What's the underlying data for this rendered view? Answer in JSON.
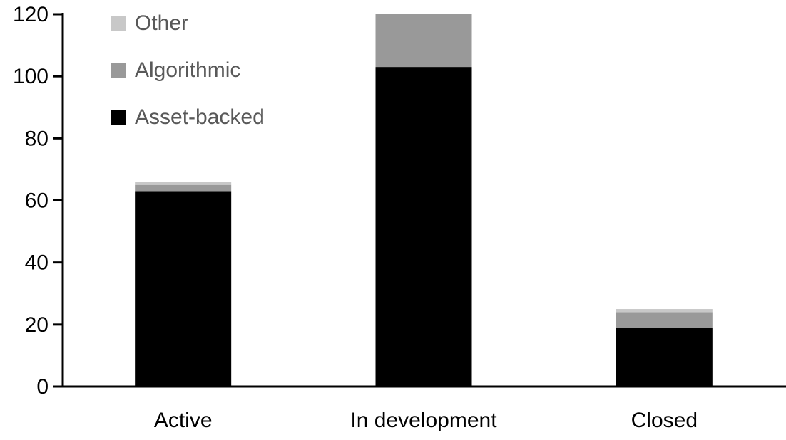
{
  "chart_data": {
    "type": "bar",
    "stacked": true,
    "title": "",
    "xlabel": "",
    "ylabel": "",
    "categories": [
      "Active",
      "In development",
      "Closed"
    ],
    "series": [
      {
        "name": "Asset-backed",
        "color": "#000000",
        "values": [
          63,
          103,
          19
        ]
      },
      {
        "name": "Algorithmic",
        "color": "#999999",
        "values": [
          2,
          17,
          5
        ]
      },
      {
        "name": "Other",
        "color": "#c8c8c8",
        "values": [
          1,
          0,
          1
        ]
      }
    ],
    "ylim": [
      0,
      120
    ],
    "yticks": [
      0,
      20,
      40,
      60,
      80,
      100,
      120
    ],
    "grid": false,
    "legend_position": "top-left",
    "legend_order_top_to_bottom": [
      "Other",
      "Algorithmic",
      "Asset-backed"
    ],
    "axis_color": "#000000",
    "tick_label_color": "#000000",
    "legend_text_color": "#595959",
    "background_color": "#ffffff"
  }
}
